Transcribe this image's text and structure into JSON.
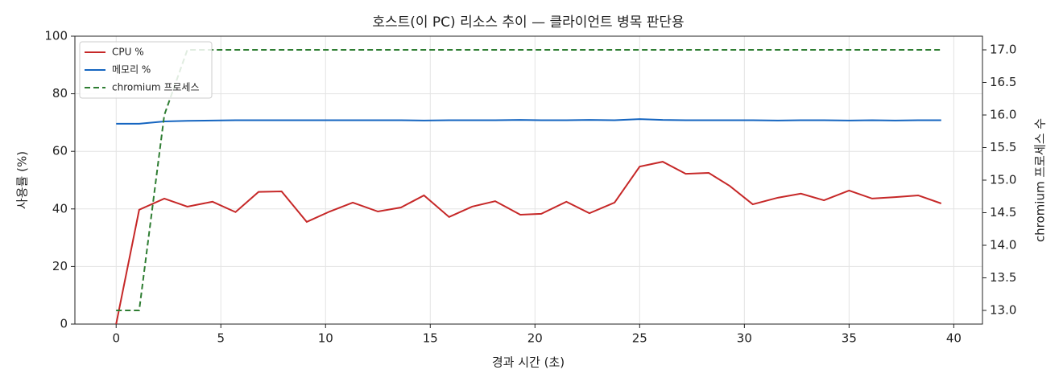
{
  "chart_data": {
    "type": "line",
    "title": "호스트(이 PC) 리소스 추이 — 클라이언트 병목 판단용",
    "xlabel": "경과 시간 (초)",
    "ylabel": "사용률 (%)",
    "y2label": "chromium 프로세스 수",
    "x": [
      0,
      1.1,
      2.3,
      3.4,
      4.6,
      5.7,
      6.8,
      7.9,
      9.1,
      10.2,
      11.3,
      12.5,
      13.6,
      14.7,
      15.9,
      17.0,
      18.1,
      19.3,
      20.3,
      21.5,
      22.6,
      23.8,
      25.0,
      26.1,
      27.2,
      28.3,
      29.3,
      30.4,
      31.6,
      32.7,
      33.8,
      35.0,
      36.1,
      37.2,
      38.3,
      39.4
    ],
    "series": [
      {
        "name": "CPU %",
        "color": "#c62828",
        "linestyle": "solid",
        "axis": "y",
        "values": [
          0,
          39.7,
          43.6,
          40.8,
          42.5,
          38.9,
          45.9,
          46.1,
          35.5,
          39.1,
          42.2,
          39.1,
          40.5,
          44.7,
          37.2,
          40.8,
          42.7,
          38.0,
          38.3,
          42.5,
          38.5,
          42.2,
          54.7,
          56.4,
          52.2,
          52.5,
          48.0,
          41.6,
          43.9,
          45.3,
          43.0,
          46.4,
          43.6,
          44.1,
          44.7,
          41.9
        ]
      },
      {
        "name": "메모리 %",
        "color": "#1565c0",
        "linestyle": "solid",
        "axis": "y",
        "values": [
          69.6,
          69.6,
          70.4,
          70.6,
          70.7,
          70.8,
          70.8,
          70.8,
          70.8,
          70.8,
          70.8,
          70.8,
          70.8,
          70.7,
          70.8,
          70.8,
          70.8,
          70.9,
          70.8,
          70.8,
          70.9,
          70.8,
          71.2,
          70.9,
          70.8,
          70.8,
          70.8,
          70.8,
          70.7,
          70.8,
          70.8,
          70.7,
          70.8,
          70.7,
          70.8,
          70.8
        ]
      },
      {
        "name": "chromium 프로세스",
        "color": "#2e7d32",
        "linestyle": "dashed",
        "axis": "y2",
        "values": [
          13,
          13,
          16,
          17,
          17,
          17,
          17,
          17,
          17,
          17,
          17,
          17,
          17,
          17,
          17,
          17,
          17,
          17,
          17,
          17,
          17,
          17,
          17,
          17,
          17,
          17,
          17,
          17,
          17,
          17,
          17,
          17,
          17,
          17,
          17,
          17
        ]
      }
    ],
    "xlim": [
      -1.97,
      41.37
    ],
    "xticks": [
      0,
      5,
      10,
      15,
      20,
      25,
      30,
      35,
      40
    ],
    "ylim": [
      0,
      100
    ],
    "yticks": [
      0,
      20,
      40,
      60,
      80,
      100
    ],
    "y2lim": [
      12.79,
      17.21
    ],
    "y2ticks": [
      {
        "value": 13,
        "label": "13.0"
      },
      {
        "value": 13.5,
        "label": "13.5"
      },
      {
        "value": 14,
        "label": "14.0"
      },
      {
        "value": 14.5,
        "label": "14.5"
      },
      {
        "value": 15,
        "label": "15.0"
      },
      {
        "value": 15.5,
        "label": "15.5"
      },
      {
        "value": 16,
        "label": "16.0"
      },
      {
        "value": 16.5,
        "label": "16.5"
      },
      {
        "value": 17,
        "label": "17.0"
      }
    ],
    "grid": true,
    "legend": "upper-left"
  }
}
